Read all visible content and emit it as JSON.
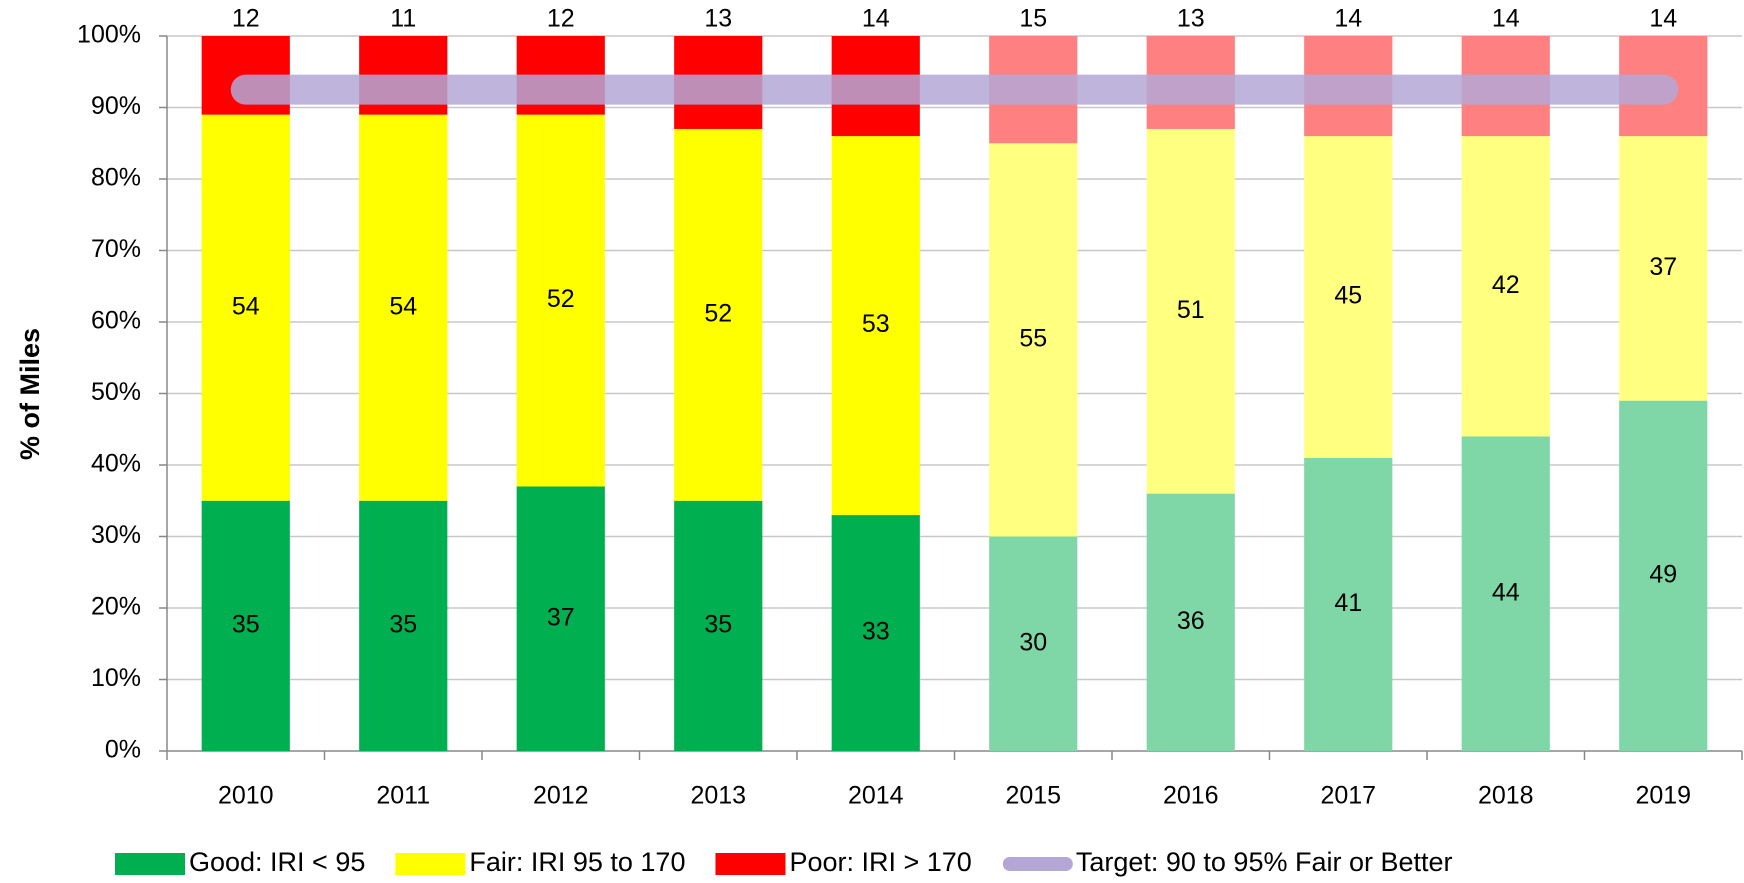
{
  "chart_data": {
    "type": "bar",
    "stacked": true,
    "y_label": "% of Miles",
    "categories": [
      "2010",
      "2011",
      "2012",
      "2013",
      "2014",
      "2015",
      "2016",
      "2017",
      "2018",
      "2019"
    ],
    "series": [
      {
        "name": "Good: IRI < 95",
        "color": "#00b050",
        "colors": [
          "#00b050",
          "#00b050",
          "#00b050",
          "#00b050",
          "#00b050",
          "#7fd7a7",
          "#7fd7a7",
          "#7fd7a7",
          "#7fd7a7",
          "#7fd7a7"
        ],
        "values": [
          35,
          35,
          37,
          35,
          33,
          30,
          36,
          41,
          44,
          49
        ]
      },
      {
        "name": "Fair: IRI 95 to 170",
        "color": "#ffff00",
        "colors": [
          "#ffff00",
          "#ffff00",
          "#ffff00",
          "#ffff00",
          "#ffff00",
          "#ffff80",
          "#ffff80",
          "#ffff80",
          "#ffff80",
          "#ffff80"
        ],
        "values": [
          54,
          54,
          52,
          52,
          53,
          55,
          51,
          45,
          42,
          37
        ]
      },
      {
        "name": "Poor: IRI > 170",
        "color": "#ff0000",
        "colors": [
          "#ff0000",
          "#ff0000",
          "#ff0000",
          "#ff0000",
          "#ff0000",
          "#ff8080",
          "#ff8080",
          "#ff8080",
          "#ff8080",
          "#ff8080"
        ],
        "values": [
          12,
          11,
          12,
          13,
          14,
          15,
          13,
          14,
          14,
          14
        ]
      },
      {
        "name": "Target: 90 to 95% Fair or Better",
        "type": "line",
        "color": "#b4a7d6",
        "values": [
          92.5,
          92.5,
          92.5,
          92.5,
          92.5,
          92.5,
          92.5,
          92.5,
          92.5,
          92.5
        ]
      }
    ],
    "ylim": [
      0,
      100
    ],
    "yticks": [
      {
        "value": 0,
        "label": "0%"
      },
      {
        "value": 10,
        "label": "10%"
      },
      {
        "value": 20,
        "label": "20%"
      },
      {
        "value": 30,
        "label": "30%"
      },
      {
        "value": 40,
        "label": "40%"
      },
      {
        "value": 50,
        "label": "50%"
      },
      {
        "value": 60,
        "label": "60%"
      },
      {
        "value": 70,
        "label": "70%"
      },
      {
        "value": 80,
        "label": "80%"
      },
      {
        "value": 90,
        "label": "90%"
      },
      {
        "value": 100,
        "label": "100%"
      }
    ],
    "grid": true,
    "legend": "bottom"
  }
}
